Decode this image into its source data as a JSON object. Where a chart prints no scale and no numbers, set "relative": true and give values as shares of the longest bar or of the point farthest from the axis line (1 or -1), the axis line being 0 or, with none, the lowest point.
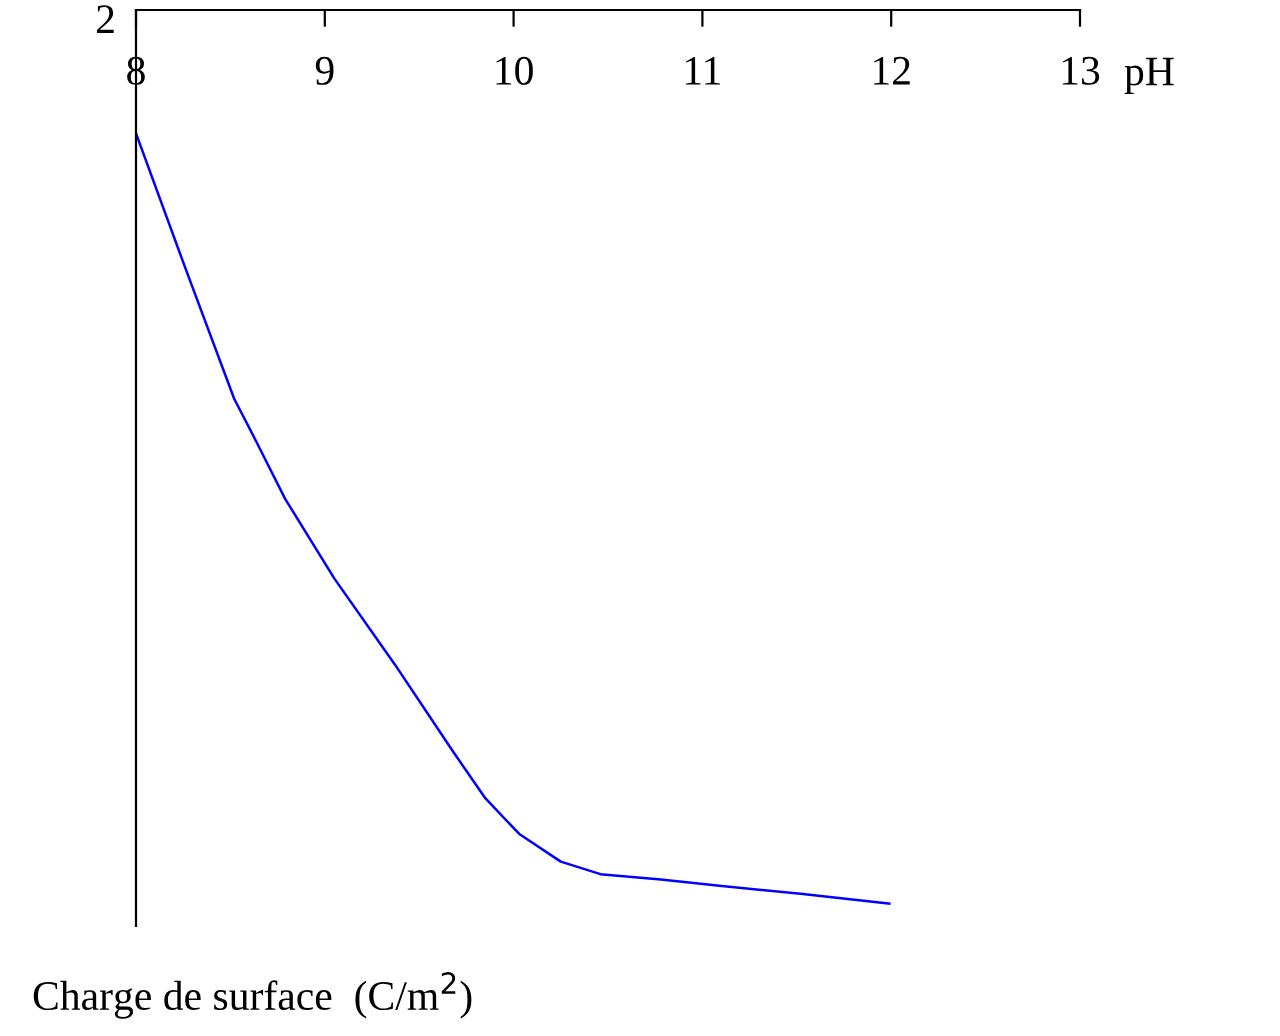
{
  "chart_data": {
    "type": "line",
    "relative": true,
    "xlabel": "pH",
    "ylabel": "Charge de surface  (C/m$^{2}$)",
    "annotations": [
      "2"
    ],
    "xlim": [
      8,
      13
    ],
    "xticks": [
      8,
      9,
      10,
      11,
      12,
      13
    ],
    "grid": false,
    "marker": "none",
    "line_style": "solid",
    "series": [
      {
        "color": "#0000ff",
        "x": [
          8.0,
          8.26,
          8.52,
          8.63,
          8.79,
          9.05,
          9.37,
          9.68,
          9.85,
          10.03,
          10.25,
          10.46,
          10.78,
          11.09,
          11.52,
          11.99
        ],
        "values": [
          -0.138,
          -0.288,
          -0.435,
          -0.48,
          -0.547,
          -0.636,
          -0.732,
          -0.83,
          -0.882,
          -0.922,
          -0.953,
          -0.967,
          -0.973,
          -0.98,
          -0.989,
          -1.0
        ]
      }
    ]
  }
}
